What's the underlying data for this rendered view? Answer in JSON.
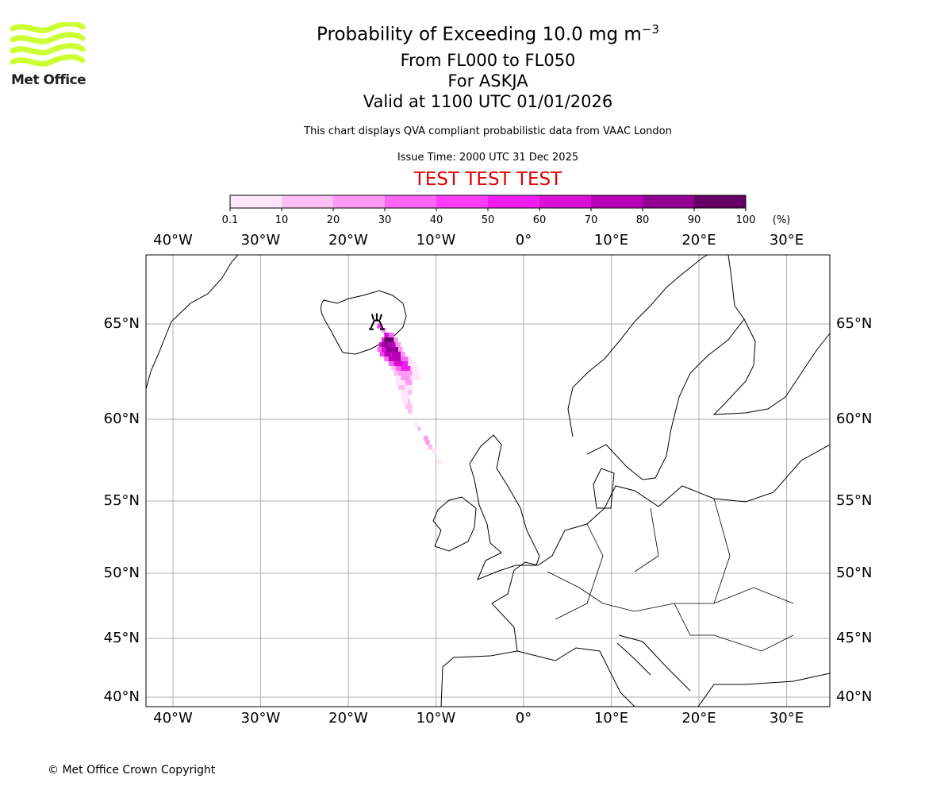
{
  "logo": {
    "text": "Met Office",
    "color": "#ccff33"
  },
  "title": {
    "main": "Probability of Exceeding 10.0 mg m",
    "main_sup": "−3",
    "levels": "From FL000 to FL050",
    "volcano": "For ASKJA",
    "valid": "Valid at 1100 UTC 01/01/2026"
  },
  "subtitle": "This chart displays QVA compliant probabilistic data from VAAC London",
  "issue_time": "Issue Time: 2000 UTC 31 Dec 2025",
  "test_banner": "TEST TEST TEST",
  "colorbar": {
    "ticks": [
      "0.1",
      "10",
      "20",
      "30",
      "40",
      "50",
      "60",
      "70",
      "80",
      "90",
      "100"
    ],
    "unit": "(%)",
    "colors": [
      "#ffe6fa",
      "#ffbff5",
      "#ff99f5",
      "#ff66f5",
      "#ff3bf8",
      "#f21cf0",
      "#d90fd6",
      "#b800b8",
      "#940094",
      "#660066"
    ]
  },
  "chart_data": {
    "type": "heatmap",
    "title": "Probability of Exceeding 10.0 mg m-3",
    "lon_ticks": [
      {
        "v": -40,
        "label": "40°W"
      },
      {
        "v": -30,
        "label": "30°W"
      },
      {
        "v": -20,
        "label": "20°W"
      },
      {
        "v": -10,
        "label": "10°W"
      },
      {
        "v": 0,
        "label": "0°"
      },
      {
        "v": 10,
        "label": "10°E"
      },
      {
        "v": 20,
        "label": "20°E"
      },
      {
        "v": 30,
        "label": "30°E"
      }
    ],
    "lat_ticks": [
      {
        "v": 65,
        "label": "65°N"
      },
      {
        "v": 60,
        "label": "60°N"
      },
      {
        "v": 55,
        "label": "55°N"
      },
      {
        "v": 50,
        "label": "50°N"
      },
      {
        "v": 45,
        "label": "45°N"
      },
      {
        "v": 40,
        "label": "40°N"
      }
    ],
    "volcano": {
      "name": "ASKJA",
      "lon": -16.75,
      "lat": 65.05
    },
    "grid": true,
    "cells_lat_lon0_lon1_prob": [
      [
        64.9,
        -16.7,
        -16.2,
        45
      ],
      [
        64.67,
        -16.2,
        -15.7,
        20
      ],
      [
        64.42,
        -15.9,
        -15.4,
        60
      ],
      [
        64.42,
        -15.4,
        -14.8,
        30
      ],
      [
        64.17,
        -16.2,
        -15.9,
        50
      ],
      [
        64.17,
        -15.9,
        -14.8,
        90
      ],
      [
        64.17,
        -14.8,
        -14.3,
        20
      ],
      [
        63.92,
        -16.5,
        -16.2,
        60
      ],
      [
        63.92,
        -16.2,
        -15.4,
        80
      ],
      [
        63.92,
        -15.4,
        -14.6,
        70
      ],
      [
        63.92,
        -14.6,
        -14.0,
        20
      ],
      [
        63.67,
        -16.7,
        -16.2,
        30
      ],
      [
        63.67,
        -16.2,
        -15.7,
        60
      ],
      [
        63.67,
        -15.7,
        -14.3,
        80
      ],
      [
        63.67,
        -14.3,
        -13.8,
        20
      ],
      [
        63.42,
        -16.4,
        -15.9,
        40
      ],
      [
        63.42,
        -15.9,
        -15.1,
        70
      ],
      [
        63.42,
        -15.1,
        -14.0,
        70
      ],
      [
        63.42,
        -14.0,
        -13.5,
        20
      ],
      [
        63.17,
        -15.9,
        -15.4,
        30
      ],
      [
        63.17,
        -15.4,
        -14.0,
        70
      ],
      [
        63.17,
        -14.0,
        -13.2,
        30
      ],
      [
        63.17,
        -13.2,
        -12.7,
        5
      ],
      [
        62.92,
        -15.4,
        -14.8,
        30
      ],
      [
        62.92,
        -14.8,
        -13.8,
        60
      ],
      [
        62.92,
        -13.8,
        -13.2,
        50
      ],
      [
        62.92,
        -13.2,
        -12.3,
        5
      ],
      [
        62.67,
        -15.1,
        -14.6,
        10
      ],
      [
        62.67,
        -14.6,
        -14.0,
        30
      ],
      [
        62.67,
        -14.0,
        -12.9,
        50
      ],
      [
        62.67,
        -12.9,
        -12.1,
        5
      ],
      [
        62.42,
        -14.8,
        -14.3,
        10
      ],
      [
        62.42,
        -14.3,
        -13.2,
        20
      ],
      [
        62.42,
        -13.2,
        -12.7,
        20
      ],
      [
        62.42,
        -12.7,
        -11.9,
        5
      ],
      [
        62.17,
        -14.6,
        -14.0,
        5
      ],
      [
        62.17,
        -14.0,
        -12.9,
        20
      ],
      [
        62.17,
        -12.9,
        -11.8,
        5
      ],
      [
        61.92,
        -14.6,
        -13.5,
        5
      ],
      [
        61.92,
        -13.5,
        -12.7,
        20
      ],
      [
        61.67,
        -14.3,
        -13.5,
        10
      ],
      [
        61.67,
        -13.5,
        -12.7,
        5
      ],
      [
        61.42,
        -14.0,
        -13.2,
        5
      ],
      [
        61.42,
        -13.2,
        -12.7,
        10
      ],
      [
        61.17,
        -14.0,
        -12.9,
        5
      ],
      [
        60.92,
        -13.8,
        -13.2,
        5
      ],
      [
        60.92,
        -13.2,
        -12.9,
        10
      ],
      [
        60.67,
        -13.5,
        -12.7,
        15
      ],
      [
        60.42,
        -13.2,
        -12.7,
        15
      ],
      [
        59.66,
        -12.5,
        -12.0,
        5
      ],
      [
        59.42,
        -12.1,
        -11.7,
        10
      ],
      [
        58.85,
        -11.4,
        -10.9,
        20
      ],
      [
        58.6,
        -11.2,
        -10.7,
        20
      ],
      [
        58.3,
        -10.9,
        -10.4,
        15
      ],
      [
        58.05,
        -10.4,
        -9.9,
        5
      ],
      [
        57.4,
        -9.9,
        -9.4,
        5
      ]
    ]
  },
  "copyright": "© Met Office Crown Copyright"
}
